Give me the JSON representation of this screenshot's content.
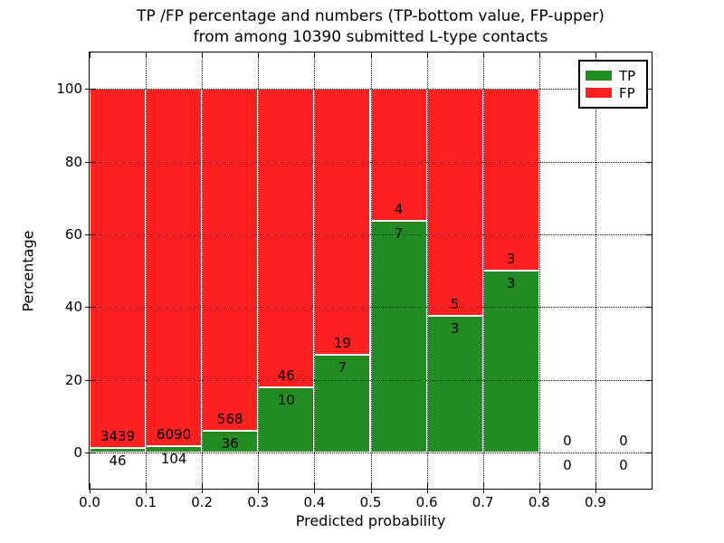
{
  "title": {
    "line1": "TP /FP percentage and numbers (TP-bottom value, FP-upper)",
    "line2": "from among 10390 submitted L-type contacts"
  },
  "axes": {
    "xlabel": "Predicted probability",
    "ylabel": "Percentage",
    "x_ticks": [
      "0.0",
      "0.1",
      "0.2",
      "0.3",
      "0.4",
      "0.5",
      "0.6",
      "0.7",
      "0.8",
      "0.9"
    ],
    "y_ticks": [
      "0",
      "20",
      "40",
      "60",
      "80",
      "100"
    ]
  },
  "legend": [
    {
      "label": "TP",
      "color": "#228b22"
    },
    {
      "label": "FP",
      "color": "#ff2020"
    }
  ],
  "chart_data": {
    "type": "bar",
    "stacked": true,
    "normalized_to_percent": true,
    "title": "TP /FP percentage and numbers (TP-bottom value, FP-upper) from among 10390 submitted L-type contacts",
    "xlabel": "Predicted probability",
    "ylabel": "Percentage",
    "xlim": [
      0.0,
      1.0
    ],
    "ylim": [
      -10,
      110
    ],
    "bin_width": 0.1,
    "x_tick_values": [
      0.0,
      0.1,
      0.2,
      0.3,
      0.4,
      0.5,
      0.6,
      0.7,
      0.8,
      0.9
    ],
    "y_tick_values": [
      0,
      20,
      40,
      60,
      80,
      100
    ],
    "grid": "dotted, both axes, drawn above bars",
    "legend_position": "upper right",
    "series_colors": {
      "tp": "#228b22",
      "fp": "#ff2020"
    },
    "bar_edge_color": "#ffffff",
    "total_submitted": 10390,
    "bins": [
      {
        "range": [
          0.0,
          0.1
        ],
        "tp": 46,
        "fp": 3439,
        "tp_pct": 1.32
      },
      {
        "range": [
          0.1,
          0.2
        ],
        "tp": 104,
        "fp": 6090,
        "tp_pct": 1.68
      },
      {
        "range": [
          0.2,
          0.3
        ],
        "tp": 36,
        "fp": 568,
        "tp_pct": 5.96
      },
      {
        "range": [
          0.3,
          0.4
        ],
        "tp": 10,
        "fp": 46,
        "tp_pct": 17.86
      },
      {
        "range": [
          0.4,
          0.5
        ],
        "tp": 7,
        "fp": 19,
        "tp_pct": 26.92
      },
      {
        "range": [
          0.5,
          0.6
        ],
        "tp": 7,
        "fp": 4,
        "tp_pct": 63.64
      },
      {
        "range": [
          0.6,
          0.7
        ],
        "tp": 3,
        "fp": 5,
        "tp_pct": 37.5
      },
      {
        "range": [
          0.7,
          0.8
        ],
        "tp": 3,
        "fp": 3,
        "tp_pct": 50.0
      },
      {
        "range": [
          0.8,
          0.9
        ],
        "tp": 0,
        "fp": 0,
        "tp_pct": 0
      },
      {
        "range": [
          0.9,
          1.0
        ],
        "tp": 0,
        "fp": 0,
        "tp_pct": 0
      }
    ]
  }
}
